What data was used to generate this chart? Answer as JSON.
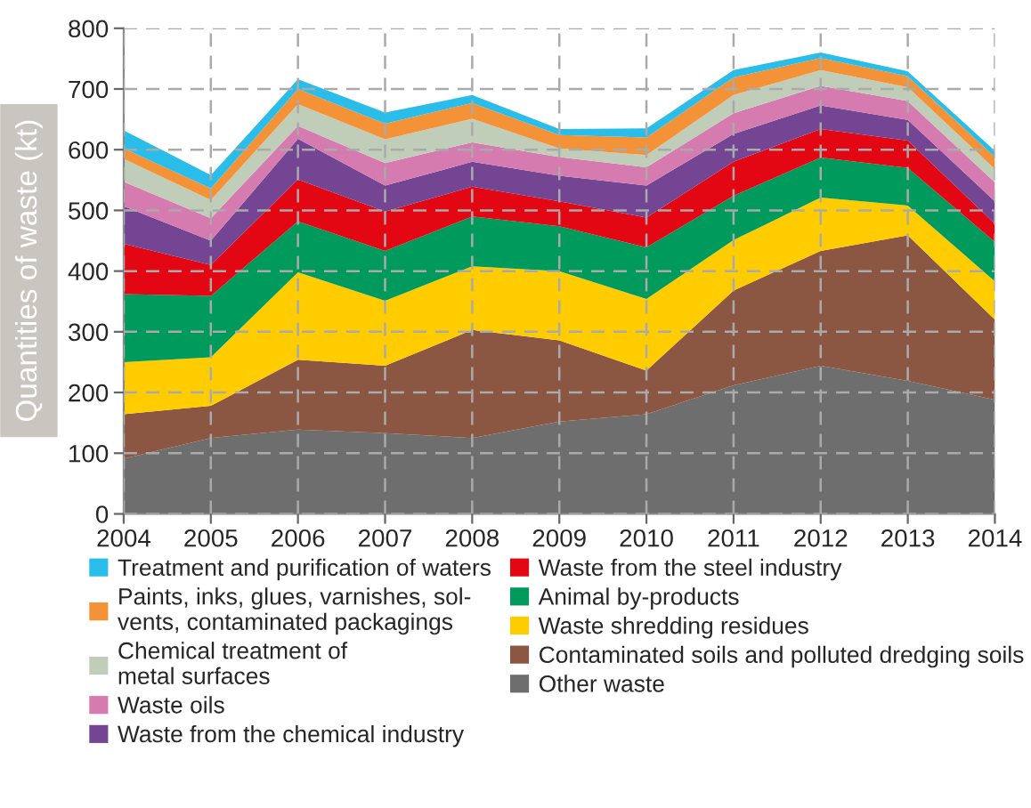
{
  "chart_data": {
    "type": "area",
    "stacked": true,
    "ylabel": "Quantities of waste (kt)",
    "x": [
      2004,
      2005,
      2006,
      2007,
      2008,
      2009,
      2010,
      2011,
      2012,
      2013,
      2014
    ],
    "xlim": [
      2004,
      2014
    ],
    "xticks": [
      2004,
      2005,
      2006,
      2007,
      2008,
      2009,
      2010,
      2011,
      2012,
      2013,
      2014
    ],
    "ylim": [
      0,
      800
    ],
    "yticks": [
      0,
      100,
      200,
      300,
      400,
      500,
      600,
      700,
      800
    ],
    "grid": true,
    "legend": "bottom",
    "series": [
      {
        "name": "Other waste",
        "color": "#6e6e6e",
        "values": [
          91,
          125,
          139,
          133,
          125,
          152,
          164,
          212,
          244,
          219,
          188
        ]
      },
      {
        "name": "Contaminated soils and polluted dredging soils",
        "color": "#8b5742",
        "values": [
          73,
          53,
          115,
          111,
          178,
          134,
          72,
          156,
          189,
          240,
          132
        ]
      },
      {
        "name": "Waste shredding residues",
        "color": "#ffcc00",
        "values": [
          86,
          80,
          144,
          107,
          105,
          114,
          118,
          83,
          88,
          49,
          63
        ]
      },
      {
        "name": "Animal by-products",
        "color": "#009a5d",
        "values": [
          112,
          101,
          84,
          82,
          82,
          74,
          85,
          73,
          66,
          62,
          65
        ]
      },
      {
        "name": "Waste from the steel industry",
        "color": "#e30613",
        "values": [
          83,
          51,
          69,
          65,
          49,
          41,
          49,
          56,
          47,
          45,
          30
        ]
      },
      {
        "name": "Waste from the chemical industry",
        "color": "#744592",
        "values": [
          62,
          40,
          67,
          43,
          41,
          42,
          53,
          46,
          39,
          34,
          37
        ]
      },
      {
        "name": "Waste oils",
        "color": "#d57bb0",
        "values": [
          40,
          37,
          21,
          37,
          32,
          31,
          30,
          34,
          32,
          31,
          31
        ]
      },
      {
        "name": "Chemical treatment of\nmetal surfaces",
        "color": "#c0cdb9",
        "values": [
          38,
          30,
          36,
          39,
          39,
          14,
          20,
          30,
          26,
          23,
          22
        ]
      },
      {
        "name": "Paints, inks, glues, varnishes, sol-\nvents, contaminated packagings",
        "color": "#f39237",
        "values": [
          17,
          19,
          25,
          26,
          26,
          22,
          29,
          29,
          20,
          18,
          20
        ]
      },
      {
        "name": "Treatment and purification of waters",
        "color": "#2bbde9",
        "values": [
          30,
          22,
          16,
          18,
          13,
          10,
          15,
          12,
          9,
          8,
          10
        ]
      }
    ]
  }
}
